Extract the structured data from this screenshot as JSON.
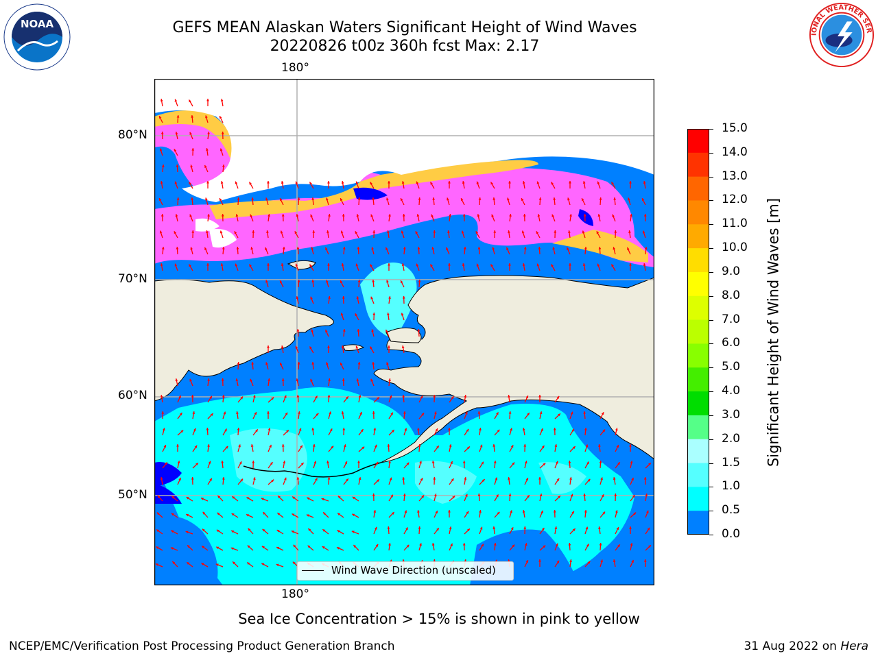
{
  "title": {
    "line1": "GEFS MEAN Alaskan Waters Significant Height of Wind Waves",
    "line2": "20220826 t00z 360h fcst   Max: 2.17"
  },
  "logos": {
    "left": {
      "icon": "noaa-logo",
      "text": "NOAA"
    },
    "right": {
      "icon": "national-weather-service-logo",
      "text": "NATIONAL WEATHER SERVICE"
    }
  },
  "axes": {
    "lon_top": "180°",
    "lon_bottom": "180°",
    "lat_labels": [
      "80°N",
      "70°N",
      "60°N",
      "50°N"
    ],
    "grid": true
  },
  "colorbar": {
    "label": "Significant Height of Wind Waves [m]",
    "ticks": [
      "15.0",
      "14.0",
      "13.0",
      "12.0",
      "11.0",
      "10.0",
      "9.0",
      "8.0",
      "7.0",
      "6.0",
      "5.0",
      "4.0",
      "3.0",
      "2.0",
      "1.5",
      "1.0",
      "0.5",
      "0.0"
    ],
    "colors": [
      "#ff0000",
      "#ff3300",
      "#ff6600",
      "#ff8800",
      "#ffaa00",
      "#ffdd00",
      "#ffff00",
      "#ddff00",
      "#bbff00",
      "#88ff00",
      "#44ee00",
      "#00dd00",
      "#55ff88",
      "#aaffff",
      "#55ffff",
      "#00ffff",
      "#0080ff",
      "#0000ff"
    ]
  },
  "legend": {
    "label": "Wind Wave Direction (unscaled)"
  },
  "note": "Sea Ice Concentration > 15% is shown in pink to yellow",
  "footer": {
    "left": "NCEP/EMC/Verification Post Processing Product Generation Branch",
    "right_date": "31 Aug 2022 on ",
    "right_machine": "Hera"
  },
  "map_colors": {
    "land": "#efedde",
    "ocean_low": "#0080ff",
    "ocean_mid": "#00ffff",
    "ocean_high": "#55ffff",
    "ice_pink": "#ff66ff",
    "ice_yellow": "#ffcc44",
    "arrows": "#ff0000"
  }
}
